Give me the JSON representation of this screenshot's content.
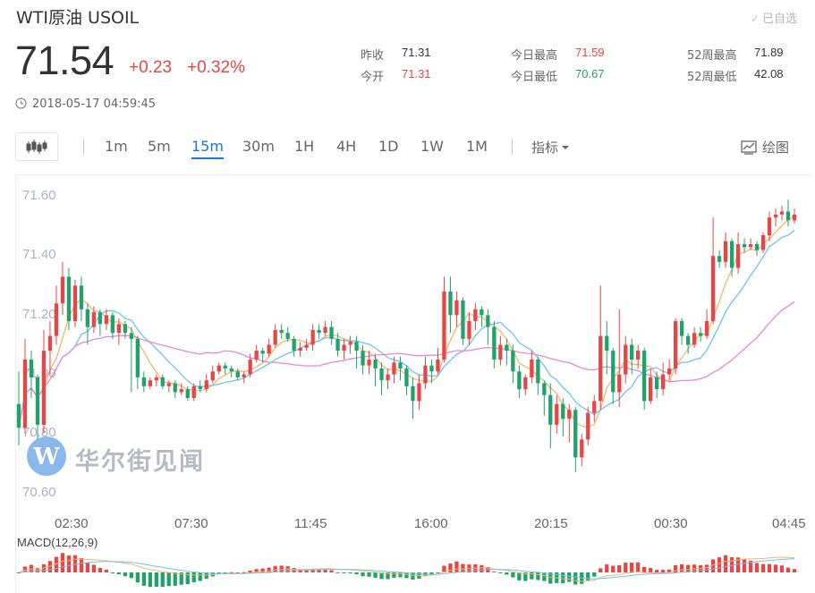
{
  "header": {
    "title": "WTI原油  USOIL",
    "watchlist_label": "已自选",
    "price": "71.54",
    "change": "+0.23",
    "change_pct": "+0.32%",
    "timestamp": "2018-05-17 04:59:45"
  },
  "stats": [
    {
      "label": "昨收",
      "value": "71.31",
      "tone": "dark"
    },
    {
      "label": "今开",
      "value": "71.31",
      "tone": "red"
    },
    {
      "label": "今日最高",
      "value": "71.59",
      "tone": "red"
    },
    {
      "label": "今日最低",
      "value": "70.67",
      "tone": "green"
    },
    {
      "label": "52周最高",
      "value": "71.89",
      "tone": "dark"
    },
    {
      "label": "52周最低",
      "value": "42.08",
      "tone": "dark"
    }
  ],
  "toolbar": {
    "chart_type_icon": "candlestick-icon",
    "periods": [
      "1m",
      "5m",
      "15m",
      "30m",
      "1H",
      "4H",
      "1D",
      "1W",
      "1M"
    ],
    "active_period": "15m",
    "indicator_label": "指标",
    "draw_label": "绘图"
  },
  "watermark": {
    "text": "华尔街见闻",
    "logo_letter": "W"
  },
  "colors": {
    "up": "#e84545",
    "down": "#20a36a",
    "active": "#1a73e8",
    "ma_fast": "#f5b56b",
    "ma_mid": "#6cc3ee",
    "ma_slow": "#ea86d8"
  },
  "chart_data": {
    "type": "candlestick",
    "ylim": [
      70.55,
      71.62
    ],
    "y_ticks": [
      "71.60",
      "71.40",
      "71.20",
      "71.00",
      "70.80",
      "70.60"
    ],
    "x_ticks": [
      "02:30",
      "07:30",
      "11:45",
      "16:00",
      "20:15",
      "00:30",
      "04:45"
    ],
    "x_tick_index": [
      7,
      26,
      45,
      64,
      83,
      102,
      121
    ],
    "candles": [
      [
        70.9,
        70.82,
        71.01,
        70.76
      ],
      [
        70.82,
        71.05,
        71.12,
        70.8
      ],
      [
        71.05,
        70.99,
        71.08,
        70.92
      ],
      [
        70.99,
        70.83,
        71.0,
        70.78
      ],
      [
        70.83,
        71.08,
        71.15,
        70.8
      ],
      [
        71.08,
        71.13,
        71.18,
        71.0
      ],
      [
        71.13,
        71.24,
        71.3,
        71.1
      ],
      [
        71.24,
        71.33,
        71.38,
        71.2
      ],
      [
        71.33,
        71.18,
        71.36,
        71.15
      ],
      [
        71.18,
        71.3,
        71.32,
        71.16
      ],
      [
        71.3,
        71.22,
        71.33,
        71.18
      ],
      [
        71.22,
        71.16,
        71.24,
        71.1
      ],
      [
        71.16,
        71.21,
        71.23,
        71.14
      ],
      [
        71.21,
        71.17,
        71.22,
        71.13
      ],
      [
        71.17,
        71.2,
        71.22,
        71.15
      ],
      [
        71.2,
        71.14,
        71.21,
        71.12
      ],
      [
        71.14,
        71.17,
        71.19,
        71.1
      ],
      [
        71.17,
        71.14,
        71.18,
        71.12
      ],
      [
        71.14,
        71.12,
        71.16,
        70.94
      ],
      [
        71.12,
        70.99,
        71.13,
        70.95
      ],
      [
        70.99,
        70.96,
        71.01,
        70.94
      ],
      [
        70.96,
        70.98,
        70.99,
        70.95
      ],
      [
        70.98,
        70.99,
        71.0,
        70.96
      ],
      [
        70.99,
        70.96,
        71.0,
        70.95
      ],
      [
        70.96,
        70.97,
        70.98,
        70.94
      ],
      [
        70.97,
        70.94,
        70.98,
        70.92
      ],
      [
        70.94,
        70.95,
        70.97,
        70.93
      ],
      [
        70.95,
        70.92,
        70.96,
        70.91
      ],
      [
        70.92,
        70.96,
        70.97,
        70.91
      ],
      [
        70.96,
        70.95,
        70.98,
        70.94
      ],
      [
        70.95,
        70.98,
        71.0,
        70.94
      ],
      [
        70.98,
        71.01,
        71.03,
        70.97
      ],
      [
        71.01,
        71.03,
        71.04,
        71.0
      ],
      [
        71.03,
        71.02,
        71.04,
        71.0
      ],
      [
        71.02,
        71.01,
        71.03,
        70.99
      ],
      [
        71.01,
        70.99,
        71.02,
        70.98
      ],
      [
        70.99,
        71.0,
        71.01,
        70.97
      ],
      [
        71.0,
        71.05,
        71.07,
        70.99
      ],
      [
        71.05,
        71.08,
        71.1,
        71.04
      ],
      [
        71.08,
        71.07,
        71.09,
        71.04
      ],
      [
        71.07,
        71.1,
        71.12,
        71.06
      ],
      [
        71.1,
        71.15,
        71.17,
        71.09
      ],
      [
        71.15,
        71.14,
        71.17,
        71.12
      ],
      [
        71.14,
        71.12,
        71.16,
        71.11
      ],
      [
        71.12,
        71.08,
        71.13,
        71.06
      ],
      [
        71.08,
        71.09,
        71.11,
        71.06
      ],
      [
        71.09,
        71.1,
        71.12,
        71.08
      ],
      [
        71.1,
        71.15,
        71.17,
        71.08
      ],
      [
        71.15,
        71.14,
        71.17,
        71.12
      ],
      [
        71.14,
        71.16,
        71.18,
        71.13
      ],
      [
        71.16,
        71.12,
        71.18,
        71.1
      ],
      [
        71.12,
        71.08,
        71.14,
        71.06
      ],
      [
        71.08,
        71.1,
        71.12,
        71.05
      ],
      [
        71.1,
        71.11,
        71.13,
        71.07
      ],
      [
        71.11,
        71.08,
        71.13,
        71.02
      ],
      [
        71.08,
        71.03,
        71.1,
        71.0
      ],
      [
        71.03,
        71.05,
        71.08,
        71.0
      ],
      [
        71.05,
        71.02,
        71.07,
        70.96
      ],
      [
        71.02,
        70.98,
        71.04,
        70.93
      ],
      [
        70.98,
        71.0,
        71.02,
        70.95
      ],
      [
        71.0,
        71.04,
        71.06,
        70.97
      ],
      [
        71.04,
        71.02,
        71.06,
        70.98
      ],
      [
        71.02,
        70.96,
        71.03,
        70.93
      ],
      [
        70.96,
        70.91,
        70.99,
        70.85
      ],
      [
        70.91,
        70.97,
        71.0,
        70.88
      ],
      [
        70.97,
        71.03,
        71.06,
        70.95
      ],
      [
        71.03,
        71.01,
        71.05,
        70.97
      ],
      [
        71.01,
        71.05,
        71.09,
        71.0
      ],
      [
        71.05,
        71.28,
        71.33,
        71.04
      ],
      [
        71.28,
        71.2,
        71.33,
        71.14
      ],
      [
        71.2,
        71.25,
        71.28,
        71.16
      ],
      [
        71.25,
        71.12,
        71.26,
        71.1
      ],
      [
        71.12,
        71.18,
        71.21,
        71.1
      ],
      [
        71.18,
        71.22,
        71.24,
        71.15
      ],
      [
        71.22,
        71.2,
        71.23,
        71.16
      ],
      [
        71.2,
        71.16,
        71.22,
        71.1
      ],
      [
        71.16,
        71.05,
        71.18,
        71.02
      ],
      [
        71.05,
        71.1,
        71.13,
        71.03
      ],
      [
        71.1,
        71.08,
        71.12,
        71.03
      ],
      [
        71.08,
        71.01,
        71.1,
        70.97
      ],
      [
        71.01,
        70.95,
        71.03,
        70.92
      ],
      [
        70.95,
        70.99,
        71.0,
        70.93
      ],
      [
        70.99,
        71.05,
        71.08,
        70.97
      ],
      [
        71.05,
        70.97,
        71.06,
        70.93
      ],
      [
        70.97,
        70.93,
        70.98,
        70.86
      ],
      [
        70.93,
        70.83,
        70.97,
        70.75
      ],
      [
        70.83,
        70.9,
        70.93,
        70.8
      ],
      [
        70.9,
        70.85,
        70.92,
        70.79
      ],
      [
        70.85,
        70.88,
        70.9,
        70.77
      ],
      [
        70.88,
        70.72,
        70.89,
        70.67
      ],
      [
        70.72,
        70.78,
        70.8,
        70.69
      ],
      [
        70.78,
        70.87,
        70.89,
        70.76
      ],
      [
        70.87,
        70.91,
        70.93,
        70.84
      ],
      [
        70.91,
        71.13,
        71.3,
        70.88
      ],
      [
        71.13,
        71.08,
        71.18,
        71.0
      ],
      [
        71.08,
        70.94,
        71.09,
        70.9
      ],
      [
        70.94,
        71.0,
        71.22,
        70.89
      ],
      [
        71.0,
        71.1,
        71.13,
        70.97
      ],
      [
        71.1,
        71.05,
        71.12,
        71.0
      ],
      [
        71.05,
        71.08,
        71.1,
        71.02
      ],
      [
        71.08,
        70.91,
        71.09,
        70.88
      ],
      [
        70.91,
        70.99,
        71.02,
        70.9
      ],
      [
        70.99,
        70.95,
        71.01,
        70.92
      ],
      [
        70.95,
        71.0,
        71.04,
        70.93
      ],
      [
        71.0,
        71.02,
        71.05,
        70.98
      ],
      [
        71.02,
        71.18,
        71.19,
        71.0
      ],
      [
        71.18,
        71.13,
        71.19,
        71.1
      ],
      [
        71.13,
        71.1,
        71.14,
        71.07
      ],
      [
        71.1,
        71.14,
        71.16,
        71.09
      ],
      [
        71.14,
        71.13,
        71.16,
        71.11
      ],
      [
        71.13,
        71.18,
        71.22,
        71.12
      ],
      [
        71.18,
        71.4,
        71.53,
        71.17
      ],
      [
        71.4,
        71.38,
        71.42,
        71.36
      ],
      [
        71.38,
        71.45,
        71.48,
        71.36
      ],
      [
        71.45,
        71.36,
        71.46,
        71.33
      ],
      [
        71.36,
        71.44,
        71.48,
        71.34
      ],
      [
        71.44,
        71.43,
        71.46,
        71.41
      ],
      [
        71.43,
        71.44,
        71.46,
        71.42
      ],
      [
        71.44,
        71.42,
        71.45,
        71.4
      ],
      [
        71.42,
        71.47,
        71.48,
        71.41
      ],
      [
        71.47,
        71.53,
        71.55,
        71.45
      ],
      [
        71.53,
        71.54,
        71.56,
        71.5
      ],
      [
        71.54,
        71.55,
        71.57,
        71.52
      ],
      [
        71.55,
        71.52,
        71.59,
        71.5
      ],
      [
        71.52,
        71.54,
        71.56,
        71.51
      ]
    ],
    "series": [
      {
        "name": "MA",
        "period": 5
      },
      {
        "name": "MA",
        "period": 10
      },
      {
        "name": "MA",
        "period": 30
      }
    ],
    "macd_label": "MACD(12,26,9)"
  }
}
